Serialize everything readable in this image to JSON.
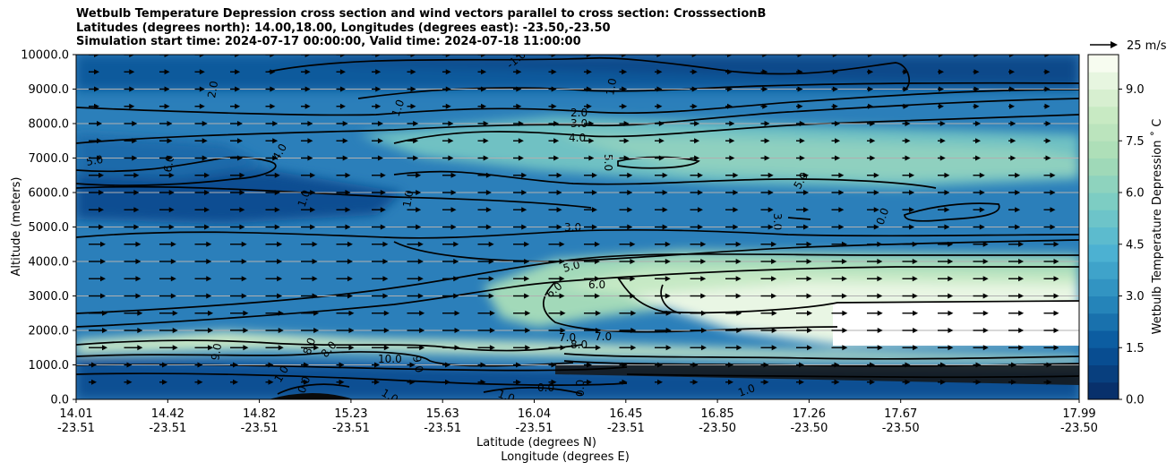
{
  "title_lines": [
    "Wetbulb Temperature Depression cross section and wind vectors parallel to cross section: CrosssectionB",
    "Latitudes (degrees north): 14.00,18.00, Longitudes (degrees east): -23.50,-23.50",
    "Simulation start time: 2024-07-17 00:00:00, Valid time: 2024-07-18 11:00:00"
  ],
  "chart_data": {
    "type": "heatmap",
    "title": "Wetbulb Temperature Depression cross section and wind vectors parallel to cross section: CrosssectionB",
    "ylabel": "Altitude (meters)",
    "xlabel_lines": [
      "Latitude (degrees N)",
      "Longitude (degrees E)"
    ],
    "ylim": [
      0,
      10000
    ],
    "y_ticks": [
      "0.0",
      "1000.0",
      "2000.0",
      "3000.0",
      "4000.0",
      "5000.0",
      "6000.0",
      "7000.0",
      "8000.0",
      "9000.0",
      "10000.0"
    ],
    "x_ticks": [
      {
        "lat": "14.01",
        "lon": "-23.51"
      },
      {
        "lat": "14.42",
        "lon": "-23.51"
      },
      {
        "lat": "14.82",
        "lon": "-23.51"
      },
      {
        "lat": "15.23",
        "lon": "-23.51"
      },
      {
        "lat": "15.63",
        "lon": "-23.51"
      },
      {
        "lat": "16.04",
        "lon": "-23.51"
      },
      {
        "lat": "16.45",
        "lon": "-23.51"
      },
      {
        "lat": "16.85",
        "lon": "-23.50"
      },
      {
        "lat": "17.26",
        "lon": "-23.50"
      },
      {
        "lat": "17.67",
        "lon": "-23.50"
      },
      {
        "lat": "17.99",
        "lon": "-23.50"
      }
    ],
    "colorbar": {
      "label": "Wetbulb Temperature Depression $^\\circ$C",
      "label_display": "Wetbulb Temperature Depression ˚ C",
      "range": [
        0,
        10
      ],
      "ticks": [
        "0.0",
        "1.5",
        "3.0",
        "4.5",
        "6.0",
        "7.5",
        "9.0"
      ],
      "colormap": "GnBu_r",
      "colors": [
        "#08306b",
        "#08589e",
        "#2b8cbe",
        "#4eb3d3",
        "#7bccc4",
        "#a8ddb5",
        "#ccebc5",
        "#f7fcf0"
      ]
    },
    "quiver_key": {
      "label": "25 m/s",
      "value": 25
    },
    "grid": "horizontal",
    "contour_labels": [
      "-1.0",
      "0.0",
      "1.0",
      "2.0",
      "3.0",
      "4.0",
      "5.0",
      "6.0",
      "7.0",
      "8.0",
      "9.0",
      "10.0"
    ]
  }
}
